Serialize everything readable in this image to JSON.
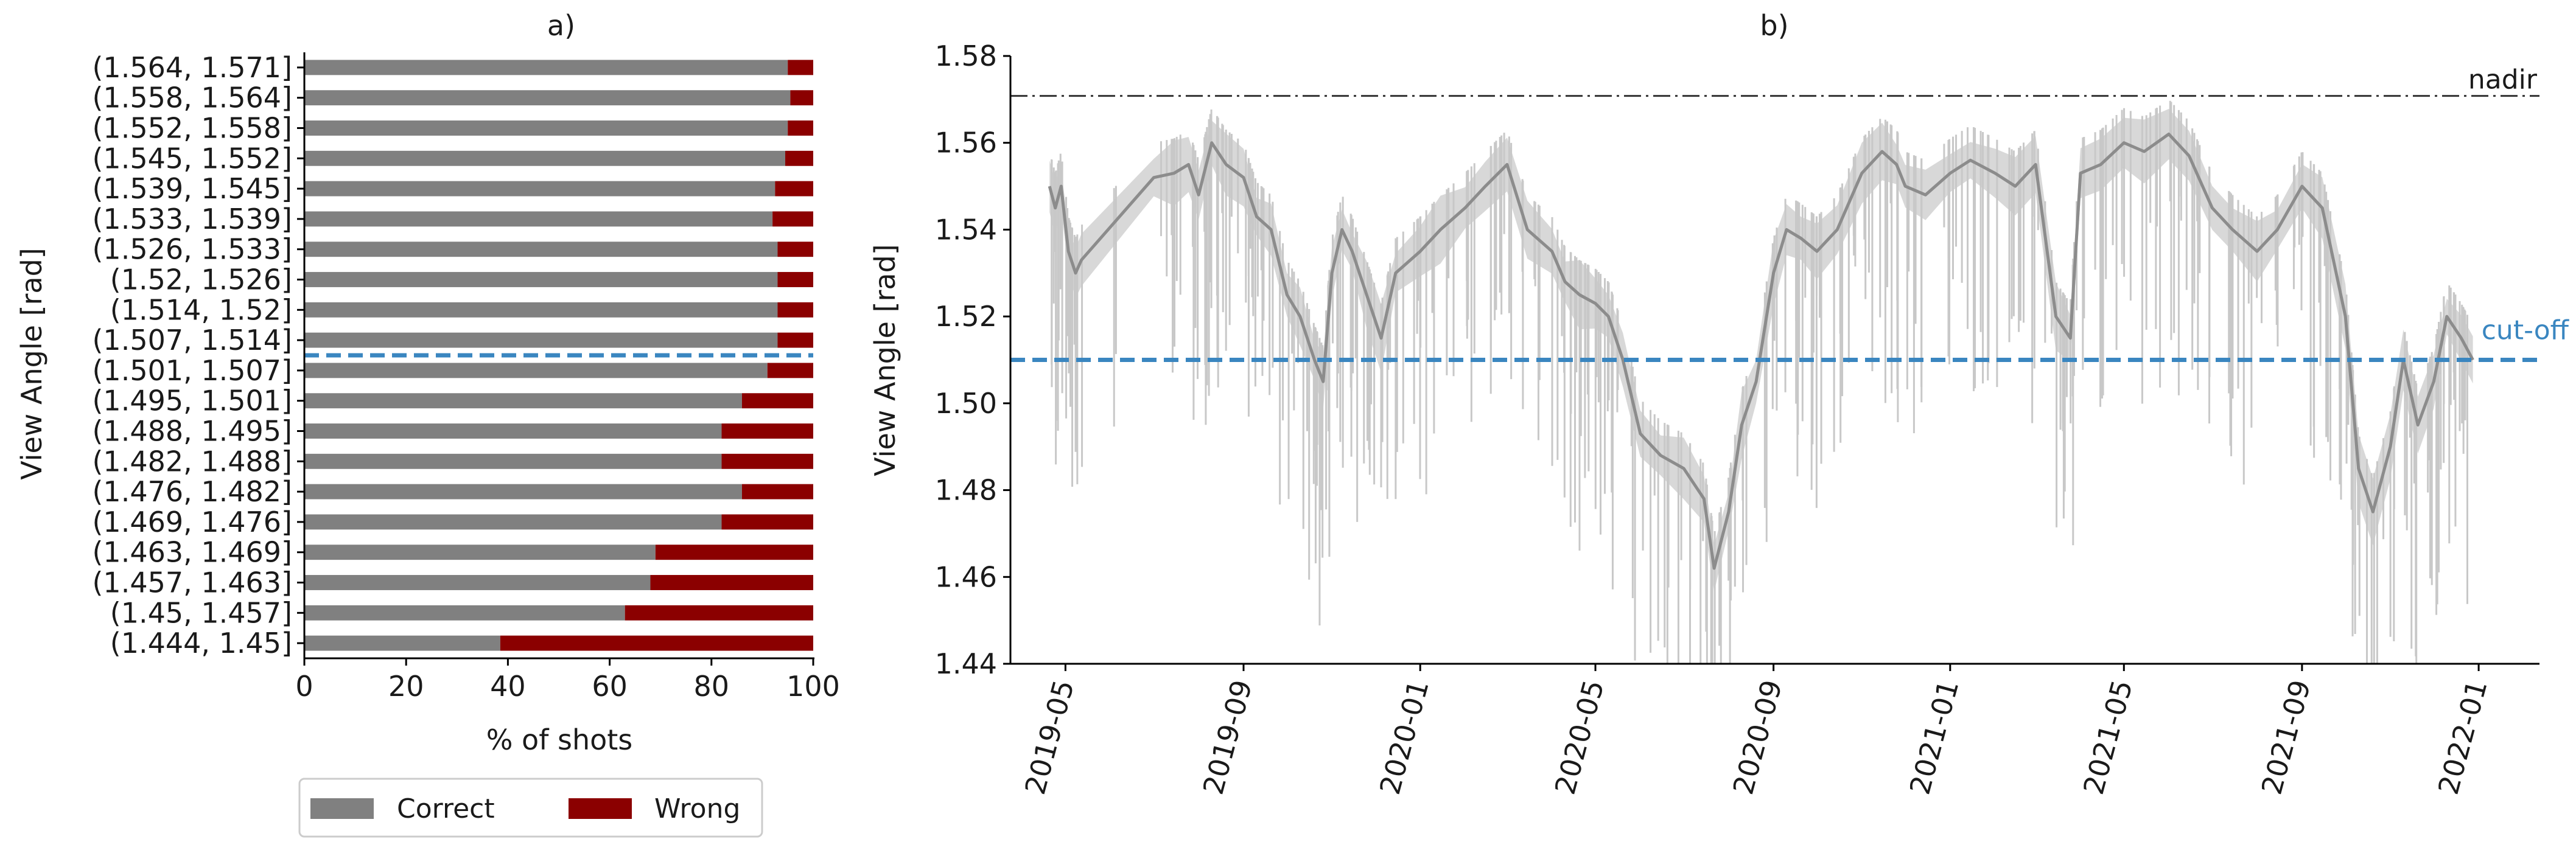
{
  "chart_data": [
    {
      "type": "bar",
      "stacked": true,
      "orientation": "horizontal",
      "title": "a)",
      "xlabel": "% of shots",
      "ylabel": "View Angle [rad]",
      "xlim": [
        0,
        100
      ],
      "xticks": [
        "0",
        "20",
        "40",
        "60",
        "80",
        "100"
      ],
      "categories": [
        "(1.564, 1.571]",
        "(1.558, 1.564]",
        "(1.552, 1.558]",
        "(1.545, 1.552]",
        "(1.539, 1.545]",
        "(1.533, 1.539]",
        "(1.526, 1.533]",
        "(1.52, 1.526]",
        "(1.514, 1.52]",
        "(1.507, 1.514]",
        "(1.501, 1.507]",
        "(1.495, 1.501]",
        "(1.488, 1.495]",
        "(1.482, 1.488]",
        "(1.476, 1.482]",
        "(1.469, 1.476]",
        "(1.463, 1.469]",
        "(1.457, 1.463]",
        "(1.45, 1.457]",
        "(1.444, 1.45]"
      ],
      "series": [
        {
          "name": "Correct",
          "color": "#808080",
          "values": [
            95,
            95.5,
            95,
            94.5,
            92.5,
            92,
            93,
            93,
            93,
            93,
            91,
            86,
            82,
            82,
            86,
            82,
            69,
            68,
            63,
            38.5
          ]
        },
        {
          "name": "Wrong",
          "color": "#8b0000",
          "values": [
            5,
            4.5,
            5,
            5.5,
            7.5,
            8,
            7,
            7,
            7,
            7,
            9,
            14,
            18,
            18,
            14,
            18,
            31,
            32,
            37,
            61.5
          ]
        }
      ],
      "cutoff_between": [
        "(1.507, 1.514]",
        "(1.501, 1.507]"
      ],
      "cutoff_color": "#3a86c0",
      "legend": {
        "position": "bottom",
        "entries": [
          "Correct",
          "Wrong"
        ]
      },
      "grid": false
    },
    {
      "type": "line",
      "title": "b)",
      "ylabel": "View Angle [rad]",
      "xlabel": "",
      "ylim": [
        1.44,
        1.58
      ],
      "yticks": [
        "1.44",
        "1.46",
        "1.48",
        "1.50",
        "1.52",
        "1.54",
        "1.56",
        "1.58"
      ],
      "xlim": [
        "2019-03-24",
        "2022-02-12"
      ],
      "xticks": [
        "2019-05",
        "2019-09",
        "2020-01",
        "2020-05",
        "2020-09",
        "2021-01",
        "2021-05",
        "2021-09",
        "2022-01"
      ],
      "xtick_dates": [
        "2019-05-01",
        "2019-09-01",
        "2020-01-01",
        "2020-05-01",
        "2020-09-01",
        "2021-01-01",
        "2021-05-01",
        "2021-09-01",
        "2022-01-01"
      ],
      "series_color": "#8c8c8c",
      "band_color": "#d4d4d4",
      "series": [
        {
          "x": [
            "2019-04-20",
            "2019-04-24",
            "2019-04-28",
            "2019-05-03",
            "2019-05-08",
            "2019-05-12",
            "2019-07-01",
            "2019-07-15",
            "2019-07-25",
            "2019-08-01",
            "2019-08-10",
            "2019-08-20",
            "2019-09-01",
            "2019-09-10",
            "2019-09-20",
            "2019-10-01",
            "2019-10-10",
            "2019-10-20",
            "2019-10-26",
            "2019-11-01",
            "2019-11-08",
            "2019-11-15",
            "2019-11-25",
            "2019-12-05",
            "2019-12-15",
            "2020-01-01",
            "2020-01-15",
            "2020-02-01",
            "2020-02-15",
            "2020-03-01",
            "2020-03-15",
            "2020-04-01",
            "2020-04-10",
            "2020-04-20",
            "2020-05-01",
            "2020-05-10",
            "2020-05-20",
            "2020-06-01",
            "2020-06-15",
            "2020-07-01",
            "2020-07-15",
            "2020-07-22",
            "2020-08-01",
            "2020-08-10",
            "2020-08-20",
            "2020-09-01",
            "2020-09-10",
            "2020-09-20",
            "2020-10-01",
            "2020-10-15",
            "2020-11-01",
            "2020-11-15",
            "2020-11-25",
            "2020-12-01",
            "2020-12-15",
            "2021-01-01",
            "2021-01-15",
            "2021-02-01",
            "2021-02-15",
            "2021-03-01",
            "2021-03-15",
            "2021-03-25",
            "2021-04-01",
            "2021-04-15",
            "2021-05-01",
            "2021-05-15",
            "2021-06-01",
            "2021-06-15",
            "2021-07-01",
            "2021-07-15",
            "2021-08-01",
            "2021-08-15",
            "2021-09-01",
            "2021-09-15",
            "2021-10-01",
            "2021-10-10",
            "2021-10-20",
            "2021-11-01",
            "2021-11-10",
            "2021-11-20",
            "2021-12-01",
            "2021-12-10",
            "2021-12-20",
            "2021-12-28"
          ],
          "y": [
            1.55,
            1.545,
            1.55,
            1.535,
            1.53,
            1.533,
            1.552,
            1.553,
            1.555,
            1.548,
            1.56,
            1.555,
            1.552,
            1.543,
            1.54,
            1.525,
            1.52,
            1.51,
            1.505,
            1.53,
            1.54,
            1.535,
            1.525,
            1.515,
            1.53,
            1.535,
            1.54,
            1.545,
            1.55,
            1.555,
            1.54,
            1.535,
            1.528,
            1.525,
            1.523,
            1.52,
            1.51,
            1.493,
            1.488,
            1.485,
            1.478,
            1.462,
            1.475,
            1.495,
            1.505,
            1.53,
            1.54,
            1.538,
            1.535,
            1.54,
            1.553,
            1.558,
            1.555,
            1.55,
            1.548,
            1.553,
            1.556,
            1.553,
            1.55,
            1.555,
            1.52,
            1.515,
            1.553,
            1.555,
            1.56,
            1.558,
            1.562,
            1.557,
            1.545,
            1.54,
            1.535,
            1.54,
            1.55,
            1.545,
            1.52,
            1.485,
            1.475,
            1.49,
            1.51,
            1.495,
            1.505,
            1.52,
            1.515,
            1.51
          ]
        }
      ],
      "reference_lines": [
        {
          "label": "nadir",
          "value": 1.5708,
          "color": "#333333",
          "style": "dash-dot"
        },
        {
          "label": "cut-off",
          "value": 1.51,
          "color": "#3a86c0",
          "style": "dashed"
        }
      ],
      "grid": false
    }
  ]
}
